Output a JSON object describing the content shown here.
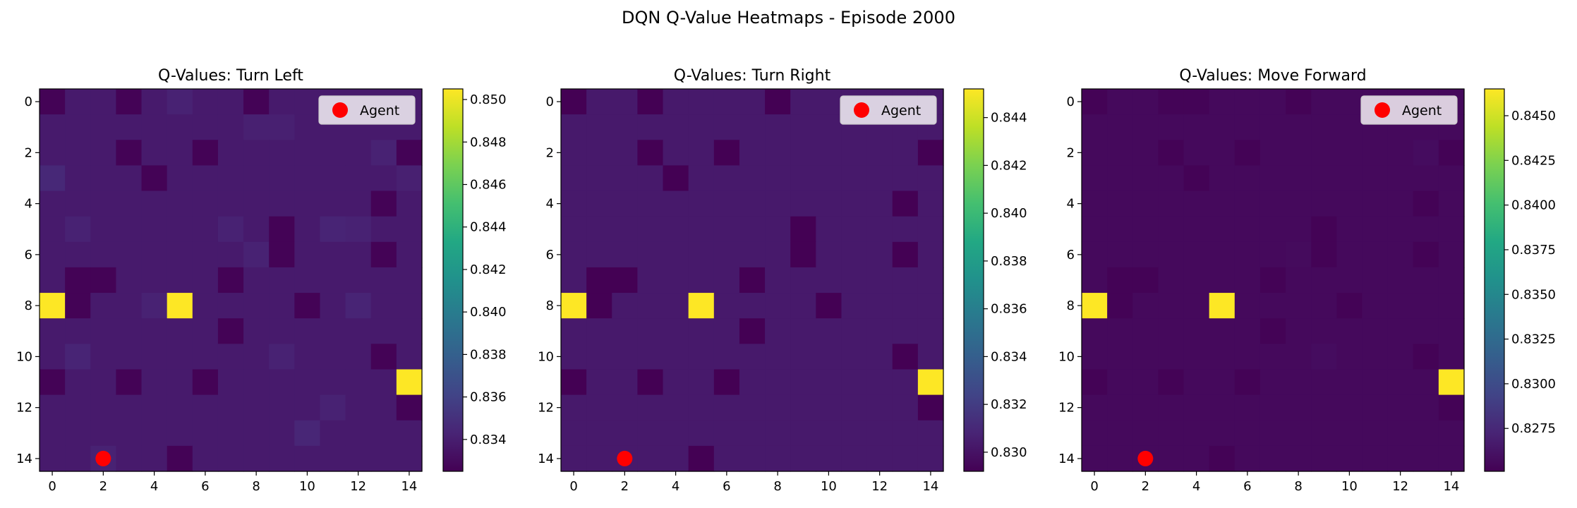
{
  "suptitle": "DQN Q-Value Heatmaps - Episode 2000",
  "colormap": "viridis",
  "colors": {
    "agent_marker": "#ff0000",
    "legend_frame": "#cccccc"
  },
  "chart_data": [
    {
      "type": "heatmap",
      "title": "Q-Values: Turn Left",
      "grid_size": 15,
      "xticks": [
        0,
        2,
        4,
        6,
        8,
        10,
        12,
        14
      ],
      "yticks": [
        0,
        2,
        4,
        6,
        8,
        10,
        12,
        14
      ],
      "colorbar": {
        "vmin": 0.8325,
        "vmax": 0.8505,
        "ticks": [
          0.834,
          0.836,
          0.838,
          0.84,
          0.842,
          0.844,
          0.846,
          0.848,
          0.85
        ],
        "tick_labels": [
          "0.834",
          "0.836",
          "0.838",
          "0.840",
          "0.842",
          "0.844",
          "0.846",
          "0.848",
          "0.850"
        ]
      },
      "base_value": 0.8338,
      "cells": [
        {
          "row": 0,
          "col": 0,
          "value": 0.8326
        },
        {
          "row": 0,
          "col": 3,
          "value": 0.8326
        },
        {
          "row": 0,
          "col": 5,
          "value": 0.8342
        },
        {
          "row": 0,
          "col": 8,
          "value": 0.8326
        },
        {
          "row": 1,
          "col": 8,
          "value": 0.8341
        },
        {
          "row": 1,
          "col": 9,
          "value": 0.8341
        },
        {
          "row": 2,
          "col": 3,
          "value": 0.8326
        },
        {
          "row": 2,
          "col": 6,
          "value": 0.8326
        },
        {
          "row": 2,
          "col": 13,
          "value": 0.8342
        },
        {
          "row": 2,
          "col": 14,
          "value": 0.8326
        },
        {
          "row": 3,
          "col": 0,
          "value": 0.8345
        },
        {
          "row": 3,
          "col": 4,
          "value": 0.8326
        },
        {
          "row": 3,
          "col": 14,
          "value": 0.8341
        },
        {
          "row": 4,
          "col": 13,
          "value": 0.8326
        },
        {
          "row": 5,
          "col": 1,
          "value": 0.8342
        },
        {
          "row": 5,
          "col": 7,
          "value": 0.8342
        },
        {
          "row": 5,
          "col": 9,
          "value": 0.8326
        },
        {
          "row": 5,
          "col": 11,
          "value": 0.8343
        },
        {
          "row": 5,
          "col": 12,
          "value": 0.8342
        },
        {
          "row": 6,
          "col": 8,
          "value": 0.8342
        },
        {
          "row": 6,
          "col": 9,
          "value": 0.8326
        },
        {
          "row": 6,
          "col": 13,
          "value": 0.8326
        },
        {
          "row": 7,
          "col": 1,
          "value": 0.8326
        },
        {
          "row": 7,
          "col": 2,
          "value": 0.8326
        },
        {
          "row": 7,
          "col": 7,
          "value": 0.8326
        },
        {
          "row": 8,
          "col": 0,
          "value": 0.8505
        },
        {
          "row": 8,
          "col": 1,
          "value": 0.8326
        },
        {
          "row": 8,
          "col": 4,
          "value": 0.8342
        },
        {
          "row": 8,
          "col": 5,
          "value": 0.8505
        },
        {
          "row": 8,
          "col": 10,
          "value": 0.8326
        },
        {
          "row": 8,
          "col": 12,
          "value": 0.8343
        },
        {
          "row": 9,
          "col": 7,
          "value": 0.8326
        },
        {
          "row": 10,
          "col": 1,
          "value": 0.8343
        },
        {
          "row": 10,
          "col": 9,
          "value": 0.8342
        },
        {
          "row": 10,
          "col": 13,
          "value": 0.8326
        },
        {
          "row": 11,
          "col": 0,
          "value": 0.8326
        },
        {
          "row": 11,
          "col": 3,
          "value": 0.8326
        },
        {
          "row": 11,
          "col": 6,
          "value": 0.8326
        },
        {
          "row": 11,
          "col": 14,
          "value": 0.8505
        },
        {
          "row": 12,
          "col": 11,
          "value": 0.8342
        },
        {
          "row": 12,
          "col": 14,
          "value": 0.8326
        },
        {
          "row": 13,
          "col": 10,
          "value": 0.8344
        },
        {
          "row": 14,
          "col": 2,
          "value": 0.8342
        },
        {
          "row": 14,
          "col": 5,
          "value": 0.8326
        }
      ],
      "agent": {
        "x": 2,
        "y": 14
      },
      "legend": {
        "label": "Agent",
        "placement": "upper right"
      }
    },
    {
      "type": "heatmap",
      "title": "Q-Values: Turn Right",
      "grid_size": 15,
      "xticks": [
        0,
        2,
        4,
        6,
        8,
        10,
        12,
        14
      ],
      "yticks": [
        0,
        2,
        4,
        6,
        8,
        10,
        12,
        14
      ],
      "colorbar": {
        "vmin": 0.8292,
        "vmax": 0.8452,
        "ticks": [
          0.83,
          0.832,
          0.834,
          0.836,
          0.838,
          0.84,
          0.842,
          0.844
        ],
        "tick_labels": [
          "0.830",
          "0.832",
          "0.834",
          "0.836",
          "0.838",
          "0.840",
          "0.842",
          "0.844"
        ]
      },
      "base_value": 0.8303,
      "cells": [
        {
          "row": 0,
          "col": 0,
          "value": 0.8292
        },
        {
          "row": 0,
          "col": 3,
          "value": 0.8292
        },
        {
          "row": 0,
          "col": 8,
          "value": 0.8292
        },
        {
          "row": 2,
          "col": 3,
          "value": 0.8292
        },
        {
          "row": 2,
          "col": 6,
          "value": 0.8292
        },
        {
          "row": 2,
          "col": 14,
          "value": 0.8292
        },
        {
          "row": 3,
          "col": 4,
          "value": 0.8292
        },
        {
          "row": 4,
          "col": 13,
          "value": 0.8292
        },
        {
          "row": 5,
          "col": 9,
          "value": 0.8292
        },
        {
          "row": 6,
          "col": 9,
          "value": 0.8292
        },
        {
          "row": 6,
          "col": 13,
          "value": 0.8292
        },
        {
          "row": 7,
          "col": 1,
          "value": 0.8292
        },
        {
          "row": 7,
          "col": 2,
          "value": 0.8292
        },
        {
          "row": 7,
          "col": 7,
          "value": 0.8292
        },
        {
          "row": 8,
          "col": 0,
          "value": 0.8452
        },
        {
          "row": 8,
          "col": 1,
          "value": 0.8292
        },
        {
          "row": 8,
          "col": 5,
          "value": 0.8452
        },
        {
          "row": 8,
          "col": 10,
          "value": 0.8292
        },
        {
          "row": 9,
          "col": 7,
          "value": 0.8292
        },
        {
          "row": 10,
          "col": 13,
          "value": 0.8292
        },
        {
          "row": 11,
          "col": 0,
          "value": 0.8292
        },
        {
          "row": 11,
          "col": 3,
          "value": 0.8292
        },
        {
          "row": 11,
          "col": 6,
          "value": 0.8292
        },
        {
          "row": 11,
          "col": 14,
          "value": 0.8452
        },
        {
          "row": 12,
          "col": 14,
          "value": 0.8292
        },
        {
          "row": 14,
          "col": 5,
          "value": 0.8292
        }
      ],
      "agent": {
        "x": 2,
        "y": 14
      },
      "legend": {
        "label": "Agent",
        "placement": "upper right"
      }
    },
    {
      "type": "heatmap",
      "title": "Q-Values: Move Forward",
      "grid_size": 15,
      "xticks": [
        0,
        2,
        4,
        6,
        8,
        10,
        12,
        14
      ],
      "yticks": [
        0,
        2,
        4,
        6,
        8,
        10,
        12,
        14
      ],
      "colorbar": {
        "vmin": 0.8251,
        "vmax": 0.8465,
        "ticks": [
          0.8275,
          0.83,
          0.8325,
          0.835,
          0.8375,
          0.84,
          0.8425,
          0.845
        ],
        "tick_labels": [
          "0.8275",
          "0.8300",
          "0.8325",
          "0.8350",
          "0.8375",
          "0.8400",
          "0.8425",
          "0.8450"
        ]
      },
      "base_value": 0.8256,
      "cells": [
        {
          "row": 0,
          "col": 0,
          "value": 0.8252
        },
        {
          "row": 0,
          "col": 3,
          "value": 0.8253
        },
        {
          "row": 0,
          "col": 4,
          "value": 0.8253
        },
        {
          "row": 0,
          "col": 8,
          "value": 0.8252
        },
        {
          "row": 2,
          "col": 3,
          "value": 0.8252
        },
        {
          "row": 2,
          "col": 6,
          "value": 0.8252
        },
        {
          "row": 2,
          "col": 13,
          "value": 0.8258
        },
        {
          "row": 2,
          "col": 14,
          "value": 0.8252
        },
        {
          "row": 3,
          "col": 4,
          "value": 0.8252
        },
        {
          "row": 4,
          "col": 13,
          "value": 0.8252
        },
        {
          "row": 5,
          "col": 9,
          "value": 0.8252
        },
        {
          "row": 6,
          "col": 8,
          "value": 0.8257
        },
        {
          "row": 6,
          "col": 9,
          "value": 0.8252
        },
        {
          "row": 6,
          "col": 13,
          "value": 0.8252
        },
        {
          "row": 7,
          "col": 1,
          "value": 0.8252
        },
        {
          "row": 7,
          "col": 2,
          "value": 0.8252
        },
        {
          "row": 7,
          "col": 7,
          "value": 0.8252
        },
        {
          "row": 8,
          "col": 0,
          "value": 0.8465
        },
        {
          "row": 8,
          "col": 1,
          "value": 0.8252
        },
        {
          "row": 8,
          "col": 5,
          "value": 0.8465
        },
        {
          "row": 8,
          "col": 10,
          "value": 0.8252
        },
        {
          "row": 9,
          "col": 7,
          "value": 0.8252
        },
        {
          "row": 10,
          "col": 9,
          "value": 0.8258
        },
        {
          "row": 10,
          "col": 13,
          "value": 0.8252
        },
        {
          "row": 11,
          "col": 0,
          "value": 0.8252
        },
        {
          "row": 11,
          "col": 3,
          "value": 0.8252
        },
        {
          "row": 11,
          "col": 6,
          "value": 0.8252
        },
        {
          "row": 11,
          "col": 14,
          "value": 0.8465
        },
        {
          "row": 12,
          "col": 14,
          "value": 0.8252
        },
        {
          "row": 14,
          "col": 5,
          "value": 0.8252
        }
      ],
      "agent": {
        "x": 2,
        "y": 14
      },
      "legend": {
        "label": "Agent",
        "placement": "upper right"
      }
    }
  ]
}
